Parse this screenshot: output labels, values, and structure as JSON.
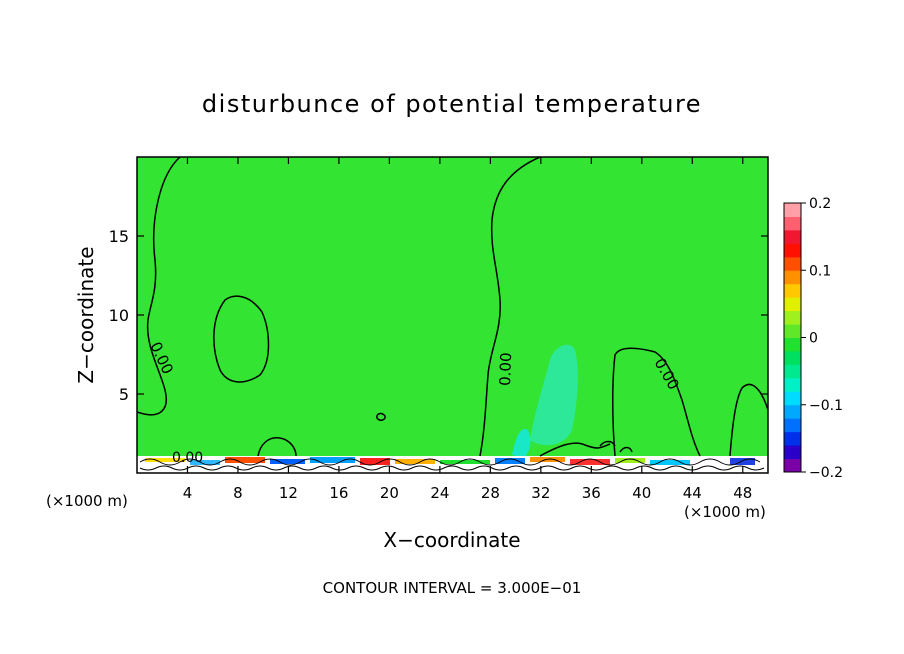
{
  "chart_data": {
    "type": "heatmap",
    "title": "disturbunce of potential temperature",
    "xlabel": "X−coordinate",
    "ylabel": "Z−coordinate",
    "x_unit_left": "(×1000 m)",
    "x_unit_right": "(×1000 m)",
    "xlim": [
      0,
      50
    ],
    "ylim": [
      0,
      20
    ],
    "xticks": [
      4,
      8,
      12,
      16,
      20,
      24,
      28,
      32,
      36,
      40,
      44,
      48
    ],
    "yticks": [
      5,
      10,
      15
    ],
    "contour_interval_text": "CONTOUR INTERVAL = 3.000E−01",
    "contour_labels": [
      "0.00",
      "0.00",
      "0.00",
      "0.00"
    ],
    "colorbar": {
      "min": -0.2,
      "max": 0.2,
      "ticks": [
        {
          "value": 0.2,
          "label": "0.2"
        },
        {
          "value": 0.1,
          "label": "0.1"
        },
        {
          "value": 0,
          "label": "0"
        },
        {
          "value": -0.1,
          "label": "−0.1"
        },
        {
          "value": -0.2,
          "label": "−0.2"
        }
      ],
      "colors": [
        "#7a00a8",
        "#2a00c8",
        "#0030e8",
        "#0070ff",
        "#00a8ff",
        "#00dcff",
        "#00f0c8",
        "#00e890",
        "#00e060",
        "#20e030",
        "#60e828",
        "#a0f020",
        "#e0f000",
        "#ffc800",
        "#ff9000",
        "#ff5000",
        "#ff1000",
        "#f01830",
        "#ff6070",
        "#ffa0a8"
      ]
    },
    "background_color": "#33e433",
    "grid": false
  }
}
